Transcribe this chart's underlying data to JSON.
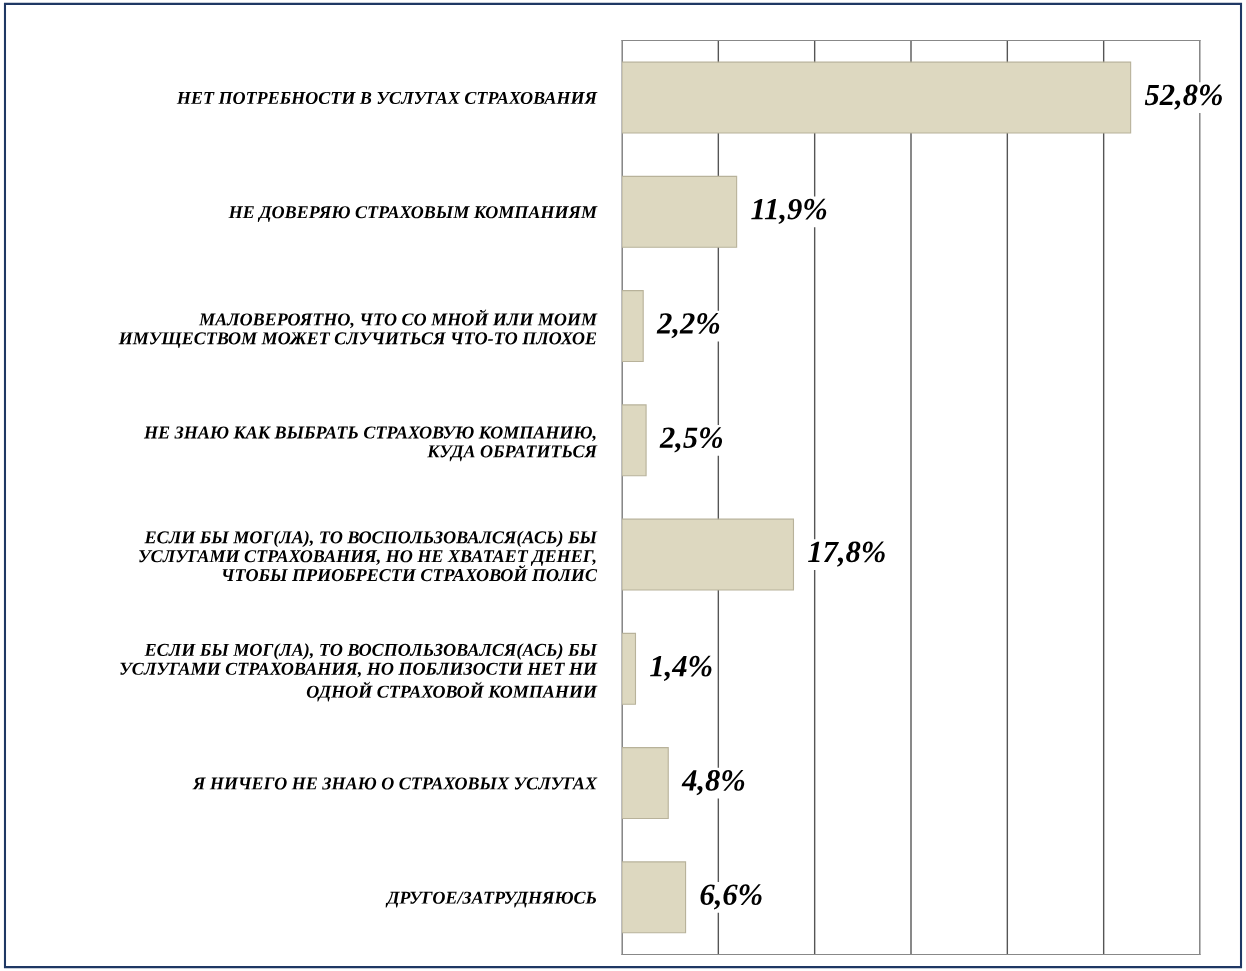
{
  "chart_data": {
    "type": "bar",
    "orientation": "horizontal",
    "categories": [
      "НЕТ ПОТРЕБНОСТИ В УСЛУГАХ СТРАХОВАНИЯ",
      "НЕ ДОВЕРЯЮ СТРАХОВЫМ КОМПАНИЯМ",
      "МАЛОВЕРОЯТНО, ЧТО СО МНОЙ ИЛИ МОИМ\nИМУЩЕСТВОМ МОЖЕТ СЛУЧИТЬСЯ ЧТО-ТО ПЛОХОЕ",
      "НЕ ЗНАЮ КАК ВЫБРАТЬ СТРАХОВУЮ КОМПАНИЮ,\nКУДА ОБРАТИТЬСЯ",
      "ЕСЛИ БЫ МОГ(ЛА), ТО ВОСПОЛЬЗОВАЛСЯ(АСЬ) БЫ\nУСЛУГАМИ СТРАХОВАНИЯ, НО НЕ ХВАТАЕТ ДЕНЕГ,\nЧТОБЫ ПРИОБРЕСТИ СТРАХОВОЙ ПОЛИС",
      "ЕСЛИ БЫ МОГ(ЛА), ТО ВОСПОЛЬЗОВАЛСЯ(АСЬ) БЫ\nУСЛУГАМИ СТРАХОВАНИЯ, НО ПОБЛИЗОСТИ НЕТ НИ\nОДНОЙ СТРАХОВОЙ КОМПАНИИ",
      "Я НИЧЕГО НЕ ЗНАЮ О СТРАХОВЫХ УСЛУГАХ",
      "ДРУГОЕ/ЗАТРУДНЯЮСЬ"
    ],
    "values": [
      52.8,
      11.9,
      2.2,
      2.5,
      17.8,
      1.4,
      4.8,
      6.6
    ],
    "value_labels": [
      "52,8%",
      "11,9%",
      "2,2%",
      "2,5%",
      "17,8%",
      "1,4%",
      "4,8%",
      "6,6%"
    ],
    "color": "#ddd8c0",
    "xlim": [
      0,
      60
    ],
    "xticks": [
      {
        "value": 0,
        "label": null
      },
      {
        "value": 10,
        "label": null
      },
      {
        "value": 20,
        "label": null
      },
      {
        "value": 30,
        "label": null
      },
      {
        "value": 40,
        "label": null
      },
      {
        "value": 50,
        "label": null
      },
      {
        "value": 60,
        "label": null
      }
    ],
    "tick_labels": "y",
    "grid": "x"
  }
}
